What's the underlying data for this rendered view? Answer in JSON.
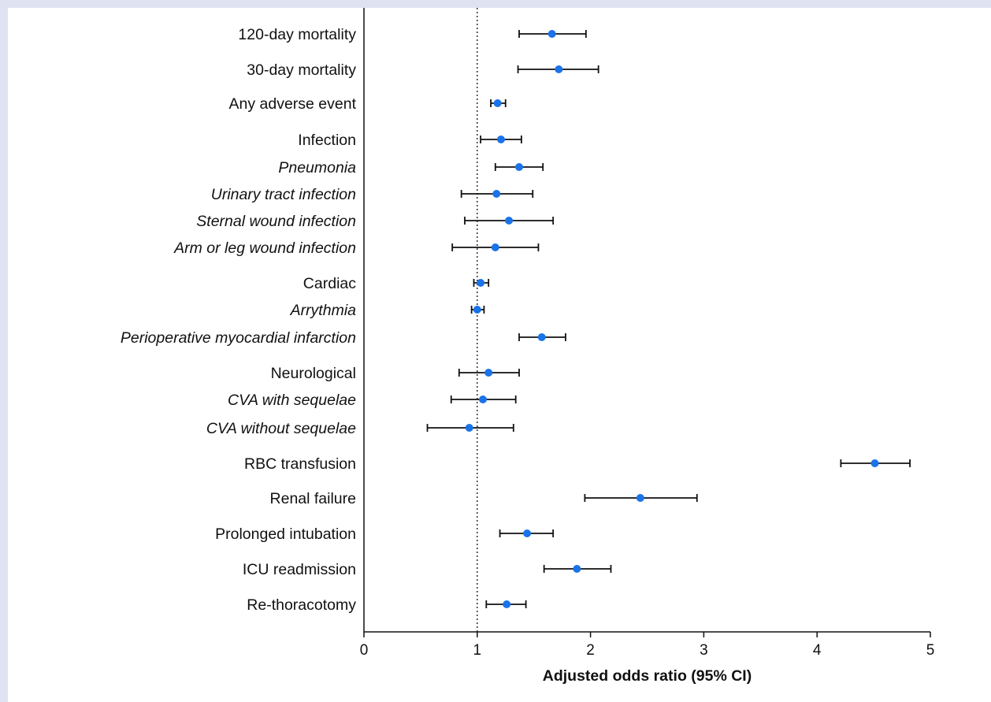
{
  "colors": {
    "background": "#dfe3f1",
    "panel": "#ffffff",
    "point": "#1a73e8",
    "whisker": "#111111",
    "axis": "#111111"
  },
  "chart_data": {
    "type": "forest",
    "xlabel": "Adjusted odds ratio (95% CI)",
    "xlim": [
      0,
      5
    ],
    "xticks": [
      0,
      1,
      2,
      3,
      4,
      5
    ],
    "reference_line": 1,
    "reference_line_style": "dotted",
    "rows": [
      {
        "label": "120-day mortality",
        "italic": false,
        "or": 1.66,
        "lo": 1.37,
        "hi": 1.96
      },
      {
        "label": "30-day mortality",
        "italic": false,
        "or": 1.72,
        "lo": 1.36,
        "hi": 2.07
      },
      {
        "label": "Any adverse event",
        "italic": false,
        "or": 1.18,
        "lo": 1.12,
        "hi": 1.25
      },
      {
        "label": "Infection",
        "italic": false,
        "or": 1.21,
        "lo": 1.03,
        "hi": 1.39
      },
      {
        "label": "Pneumonia",
        "italic": true,
        "or": 1.37,
        "lo": 1.16,
        "hi": 1.58
      },
      {
        "label": "Urinary tract infection",
        "italic": true,
        "or": 1.17,
        "lo": 0.86,
        "hi": 1.49
      },
      {
        "label": "Sternal wound infection",
        "italic": true,
        "or": 1.28,
        "lo": 0.89,
        "hi": 1.67
      },
      {
        "label": "Arm or leg wound infection",
        "italic": true,
        "or": 1.16,
        "lo": 0.78,
        "hi": 1.54
      },
      {
        "label": "Cardiac",
        "italic": false,
        "or": 1.03,
        "lo": 0.97,
        "hi": 1.1
      },
      {
        "label": "Arrythmia",
        "italic": true,
        "or": 1.0,
        "lo": 0.95,
        "hi": 1.06
      },
      {
        "label": "Perioperative myocardial infarction",
        "italic": true,
        "or": 1.57,
        "lo": 1.37,
        "hi": 1.78
      },
      {
        "label": "Neurological",
        "italic": false,
        "or": 1.1,
        "lo": 0.84,
        "hi": 1.37
      },
      {
        "label": "CVA with sequelae",
        "italic": true,
        "or": 1.05,
        "lo": 0.77,
        "hi": 1.34
      },
      {
        "label": "CVA without sequelae",
        "italic": true,
        "or": 0.93,
        "lo": 0.56,
        "hi": 1.32
      },
      {
        "label": "RBC transfusion",
        "italic": false,
        "or": 4.51,
        "lo": 4.21,
        "hi": 4.82
      },
      {
        "label": "Renal failure",
        "italic": false,
        "or": 2.44,
        "lo": 1.95,
        "hi": 2.94
      },
      {
        "label": "Prolonged intubation",
        "italic": false,
        "or": 1.44,
        "lo": 1.2,
        "hi": 1.67
      },
      {
        "label": "ICU readmission",
        "italic": false,
        "or": 1.88,
        "lo": 1.59,
        "hi": 2.18
      },
      {
        "label": "Re-thoracotomy",
        "italic": false,
        "or": 1.26,
        "lo": 1.08,
        "hi": 1.43
      }
    ]
  }
}
